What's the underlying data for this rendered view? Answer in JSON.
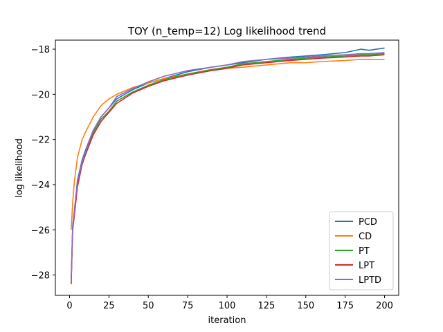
{
  "chart_data": {
    "type": "line",
    "title": "TOY (n_temp=12) Log likelihood trend",
    "xlabel": "iteration",
    "ylabel": "log likelihood",
    "xlim": [
      -9,
      209
    ],
    "ylim": [
      -28.9,
      -17.6
    ],
    "xticks": [
      0,
      25,
      50,
      75,
      100,
      125,
      150,
      175,
      200
    ],
    "yticks": [
      -28,
      -26,
      -24,
      -22,
      -20,
      -18
    ],
    "ytick_labels": [
      "−28",
      "−26",
      "−24",
      "−22",
      "−20",
      "−18"
    ],
    "grid": false,
    "legend_position": "lower-right",
    "x": [
      1,
      2,
      3,
      5,
      8,
      10,
      15,
      20,
      25,
      30,
      40,
      50,
      60,
      75,
      90,
      100,
      110,
      125,
      140,
      150,
      160,
      175,
      185,
      190,
      200
    ],
    "series": [
      {
        "name": "PCD",
        "color": "#1f77b4",
        "values": [
          -28.3,
          -25.8,
          -25.2,
          -23.8,
          -22.9,
          -22.5,
          -21.6,
          -21.0,
          -20.6,
          -20.2,
          -19.8,
          -19.5,
          -19.3,
          -19.0,
          -18.8,
          -18.7,
          -18.6,
          -18.45,
          -18.35,
          -18.3,
          -18.25,
          -18.15,
          -18.0,
          -18.05,
          -17.95
        ]
      },
      {
        "name": "CD",
        "color": "#ff7f0e",
        "values": [
          -26.0,
          -24.8,
          -23.9,
          -22.8,
          -22.0,
          -21.7,
          -21.0,
          -20.5,
          -20.2,
          -20.0,
          -19.7,
          -19.5,
          -19.3,
          -19.1,
          -18.95,
          -18.85,
          -18.8,
          -18.7,
          -18.6,
          -18.6,
          -18.55,
          -18.5,
          -18.45,
          -18.45,
          -18.45
        ]
      },
      {
        "name": "PT",
        "color": "#2ca02c",
        "values": [
          -28.4,
          -25.9,
          -25.3,
          -24.0,
          -23.0,
          -22.6,
          -21.7,
          -21.1,
          -20.75,
          -20.3,
          -19.9,
          -19.6,
          -19.35,
          -19.1,
          -18.9,
          -18.8,
          -18.65,
          -18.55,
          -18.45,
          -18.4,
          -18.35,
          -18.3,
          -18.25,
          -18.25,
          -18.2
        ]
      },
      {
        "name": "LPT",
        "color": "#d62728",
        "values": [
          -28.4,
          -26.0,
          -25.4,
          -24.1,
          -23.1,
          -22.7,
          -21.8,
          -21.2,
          -20.8,
          -20.4,
          -19.95,
          -19.65,
          -19.4,
          -19.15,
          -18.95,
          -18.85,
          -18.7,
          -18.6,
          -18.5,
          -18.45,
          -18.4,
          -18.35,
          -18.3,
          -18.3,
          -18.25
        ]
      },
      {
        "name": "LPTD",
        "color": "#9467bd",
        "values": [
          -28.3,
          -25.9,
          -25.2,
          -23.9,
          -23.0,
          -22.6,
          -21.6,
          -21.0,
          -20.6,
          -20.1,
          -19.75,
          -19.45,
          -19.2,
          -18.95,
          -18.8,
          -18.7,
          -18.55,
          -18.45,
          -18.4,
          -18.35,
          -18.3,
          -18.25,
          -18.2,
          -18.2,
          -18.15
        ]
      }
    ]
  }
}
